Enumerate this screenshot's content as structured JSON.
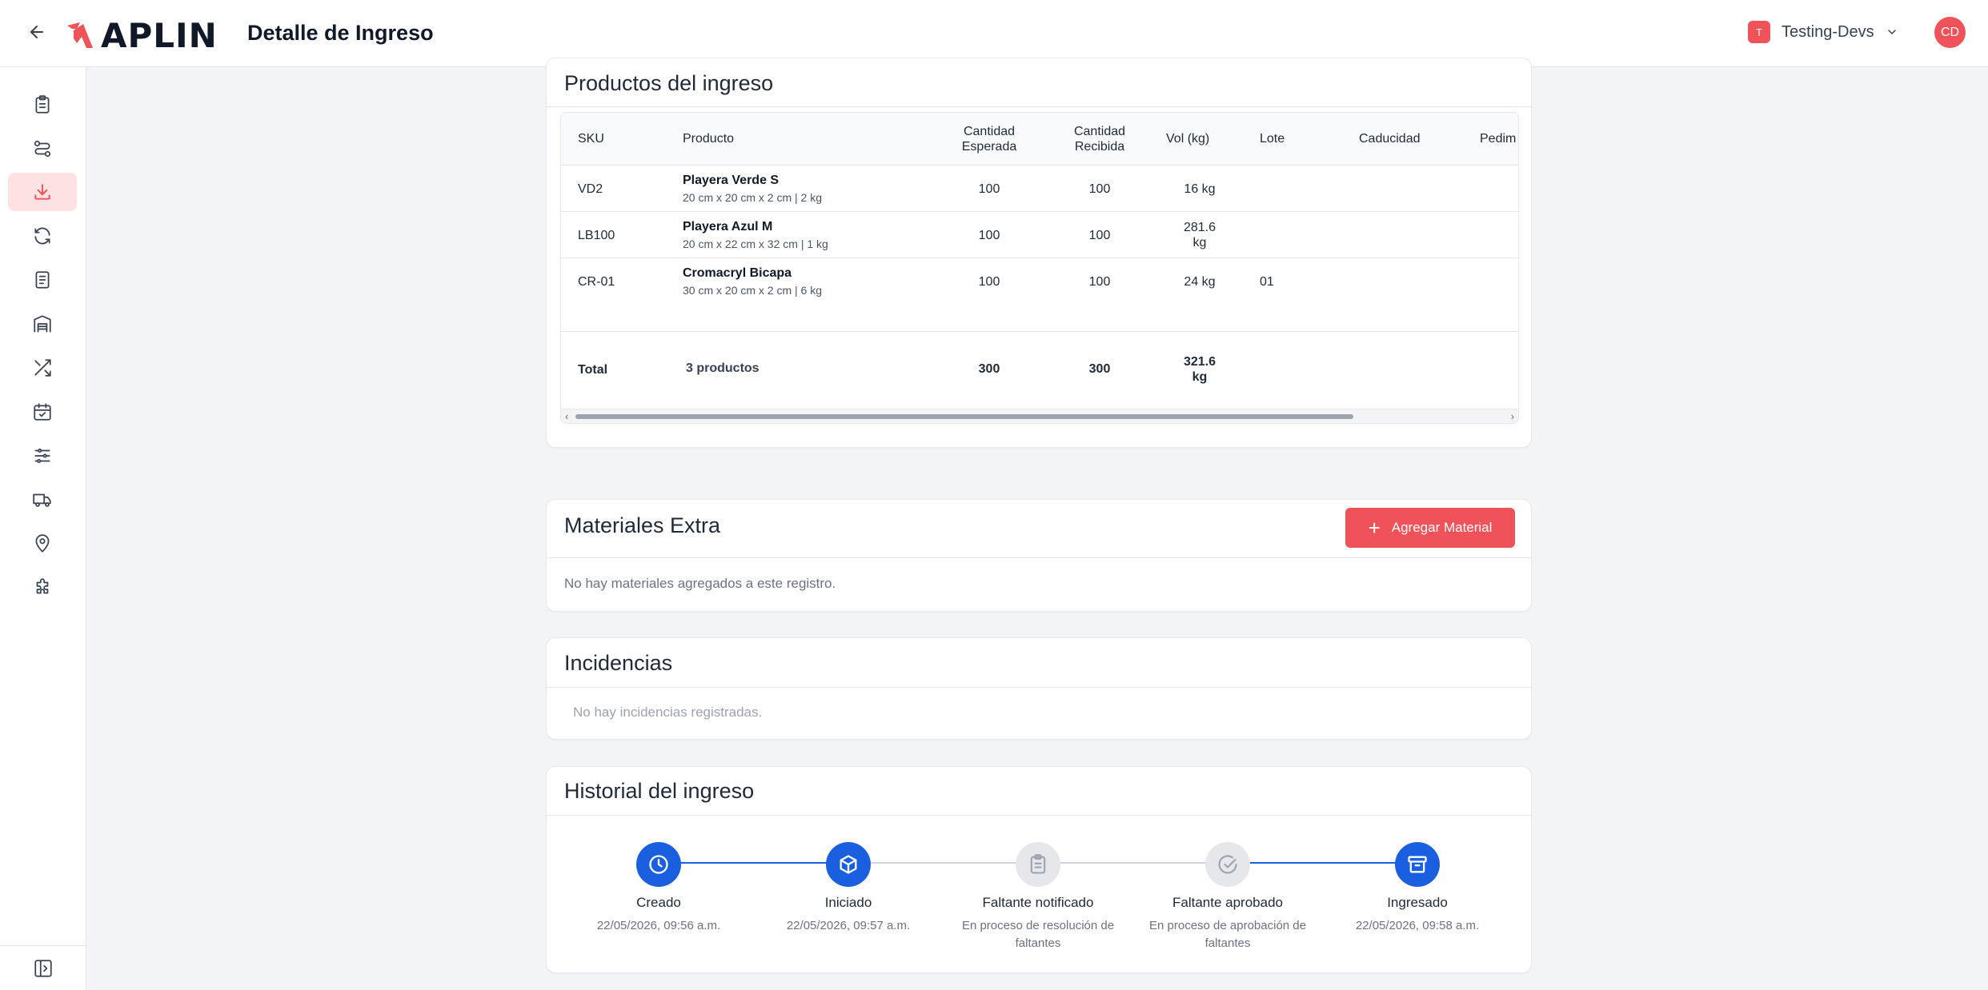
{
  "header": {
    "logo_text": "APLIN",
    "title": "Detalle de Ingreso",
    "org_initial": "T",
    "org_name": "Testing-Devs",
    "avatar_initials": "CD"
  },
  "colors": {
    "brand": "#f0525a",
    "primary_blue": "#1a5fe0",
    "active_bg": "#fde2e4"
  },
  "sidebar": {
    "items": [
      {
        "icon": "clipboard-icon"
      },
      {
        "icon": "route-icon"
      },
      {
        "icon": "download-icon",
        "active": true
      },
      {
        "icon": "refresh-icon"
      },
      {
        "icon": "document-icon"
      },
      {
        "icon": "warehouse-icon"
      },
      {
        "icon": "shuffle-icon"
      },
      {
        "icon": "calendar-sync-icon"
      },
      {
        "icon": "sliders-icon"
      },
      {
        "icon": "truck-icon"
      },
      {
        "icon": "map-pin-icon"
      },
      {
        "icon": "puzzle-icon"
      }
    ],
    "collapse_icon": "sidebar-toggle-icon"
  },
  "products": {
    "title": "Productos del ingreso",
    "headers": {
      "sku": "SKU",
      "product": "Producto",
      "expected_1": "Cantidad",
      "expected_2": "Esperada",
      "received_1": "Cantidad",
      "received_2": "Recibida",
      "vol": "Vol (kg)",
      "lot": "Lote",
      "expiry": "Caducidad",
      "pedimento": "Pedim"
    },
    "rows": [
      {
        "sku": "VD2",
        "name": "Playera Verde S",
        "dims": "20 cm x 20 cm x 2 cm | 2 kg",
        "expected": "100",
        "received": "100",
        "vol": "16 kg",
        "lot": ""
      },
      {
        "sku": "LB100",
        "name": "Playera Azul M",
        "dims": "20 cm x 22 cm x 32 cm | 1 kg",
        "expected": "100",
        "received": "100",
        "vol_1": "281.6",
        "vol_2": "kg",
        "lot": ""
      },
      {
        "sku": "CR-01",
        "name": "Cromacryl Bicapa",
        "dims": "30 cm x 20 cm x 2 cm | 6 kg",
        "expected": "100",
        "received": "100",
        "vol": "24 kg",
        "lot": "01"
      }
    ],
    "total": {
      "label": "Total",
      "count": "3 productos",
      "expected": "300",
      "received": "300",
      "vol_1": "321.6",
      "vol_2": "kg"
    }
  },
  "materials": {
    "title": "Materiales Extra",
    "add_button": "Agregar Material",
    "empty": "No hay materiales agregados a este registro."
  },
  "incidents": {
    "title": "Incidencias",
    "empty": "No hay incidencias registradas."
  },
  "history": {
    "title": "Historial del ingreso",
    "steps": [
      {
        "label": "Creado",
        "sub_1": "22/05/2026, 09:56 a.m.",
        "sub_2": "",
        "status": "done",
        "icon": "clock-icon"
      },
      {
        "label": "Iniciado",
        "sub_1": "22/05/2026, 09:57 a.m.",
        "sub_2": "",
        "status": "done",
        "icon": "package-icon"
      },
      {
        "label": "Faltante notificado",
        "sub_1": "En proceso de resolución de",
        "sub_2": "faltantes",
        "status": "pending",
        "icon": "clipboard-list-icon"
      },
      {
        "label": "Faltante aprobado",
        "sub_1": "En proceso de aprobación de",
        "sub_2": "faltantes",
        "status": "pending",
        "icon": "check-circle-icon"
      },
      {
        "label": "Ingresado",
        "sub_1": "22/05/2026, 09:58 a.m.",
        "sub_2": "",
        "status": "done",
        "icon": "archive-icon"
      }
    ]
  }
}
